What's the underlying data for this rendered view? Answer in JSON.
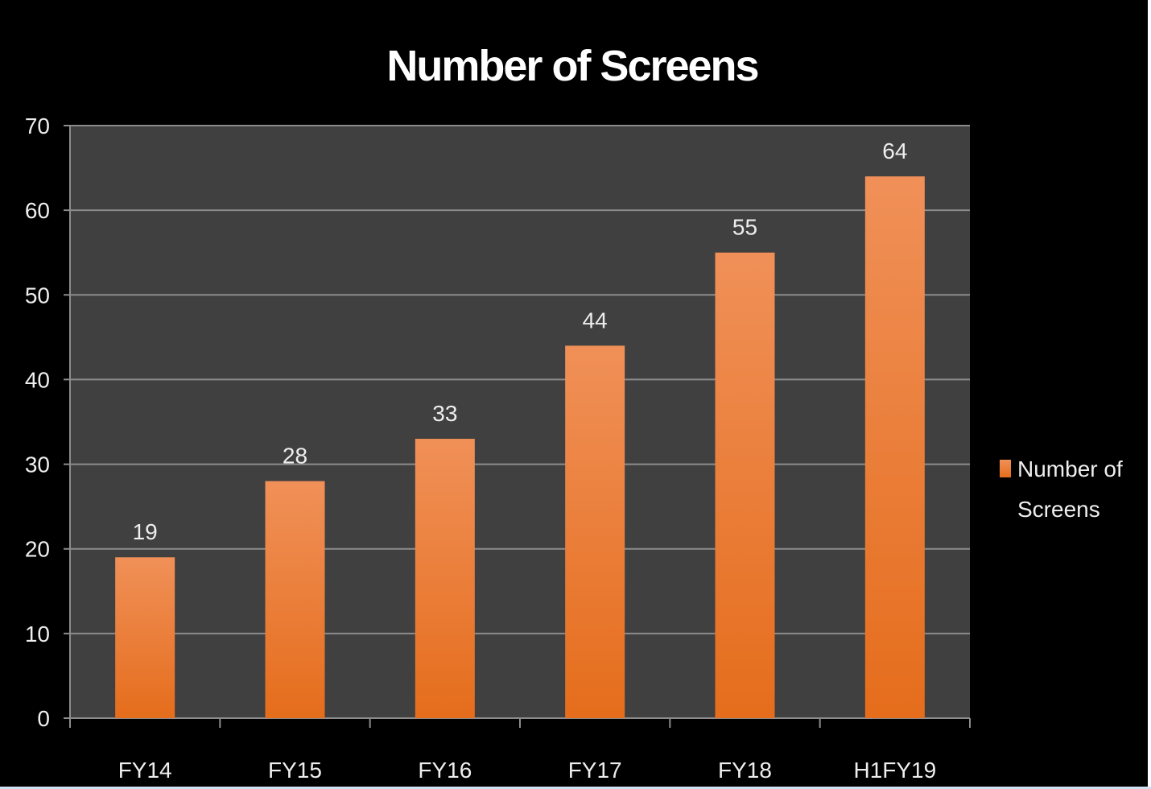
{
  "chart_data": {
    "type": "bar",
    "title": "Number of Screens",
    "categories": [
      "FY14",
      "FY15",
      "FY16",
      "FY17",
      "FY18",
      "H1FY19"
    ],
    "series": [
      {
        "name": "Number of Screens",
        "values": [
          19,
          28,
          33,
          44,
          55,
          64
        ]
      }
    ],
    "data_labels": [
      "19",
      "28",
      "33",
      "44",
      "55",
      "64"
    ],
    "xlabel": "",
    "ylabel": "",
    "ylim": [
      0,
      70
    ],
    "yticks": [
      0,
      10,
      20,
      30,
      40,
      50,
      60,
      70
    ],
    "grid": true,
    "legend": {
      "position": "right",
      "label_lines": [
        "Number of",
        "Screens"
      ]
    },
    "colors": {
      "bar_top": "#f09058",
      "bar_bottom": "#e56d1c",
      "plot_bg": "#404040",
      "page_bg": "#000000",
      "grid": "#8c8c8c"
    }
  }
}
